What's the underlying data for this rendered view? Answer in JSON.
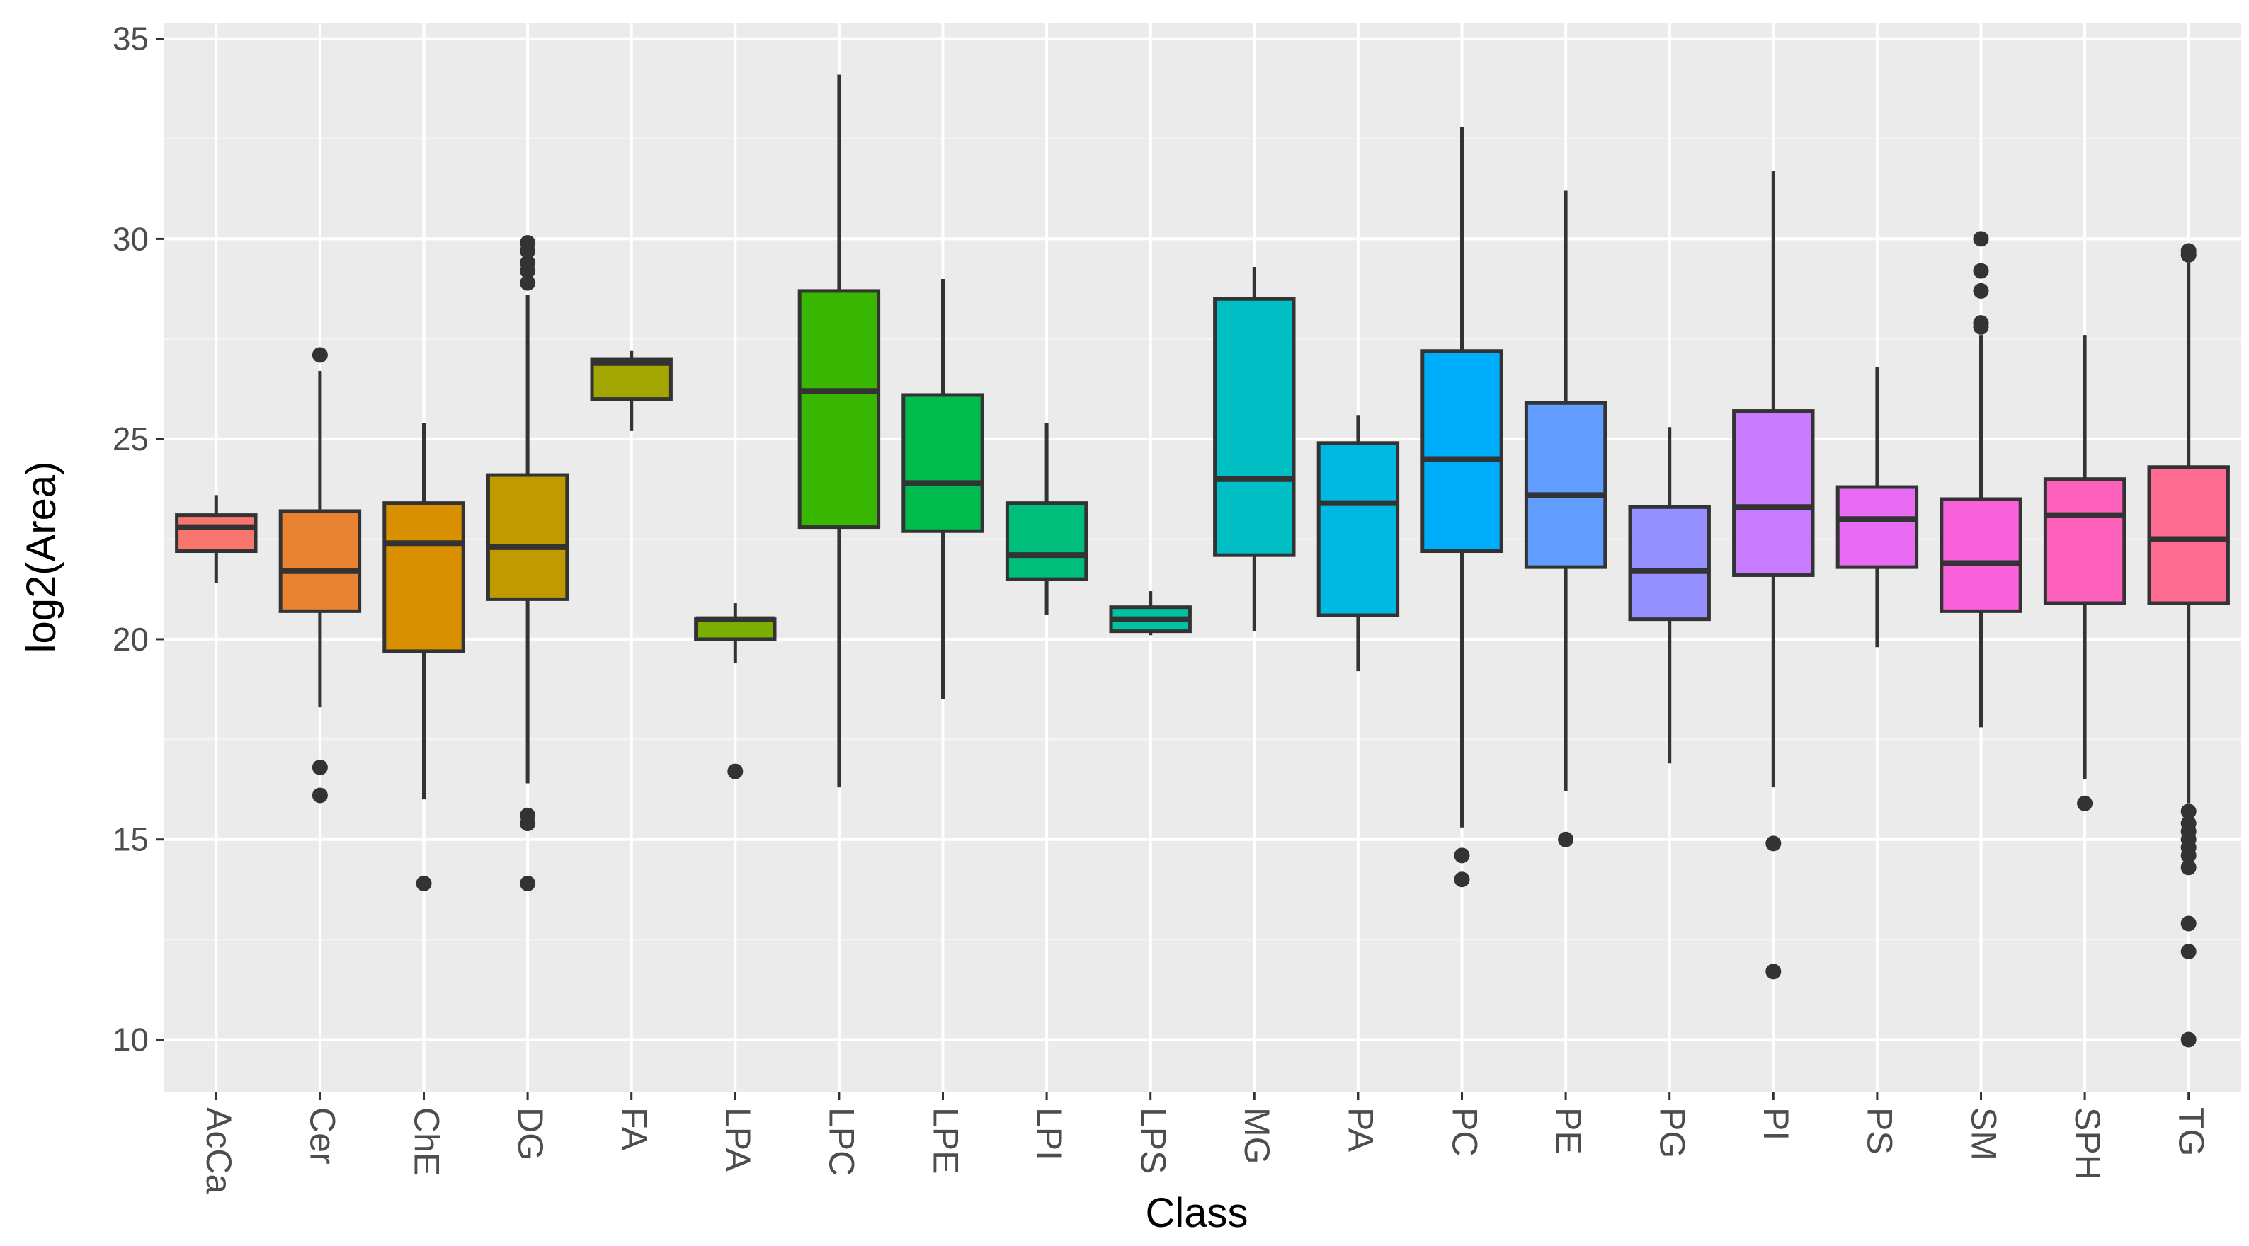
{
  "chart_data": {
    "type": "box",
    "title": "",
    "xlabel": "Class",
    "ylabel": "log2(Area)",
    "ylim": [
      8.7,
      35.4
    ],
    "yticks": [
      10,
      15,
      20,
      25,
      30,
      35
    ],
    "ytick_labels": [
      "10",
      "15",
      "20",
      "25",
      "30",
      "35"
    ],
    "categories": [
      "AcCa",
      "Cer",
      "ChE",
      "DG",
      "FA",
      "LPA",
      "LPC",
      "LPE",
      "LPI",
      "LPS",
      "MG",
      "PA",
      "PC",
      "PE",
      "PG",
      "PI",
      "PS",
      "SM",
      "SPH",
      "TG"
    ],
    "series": [
      {
        "name": "AcCa",
        "color": "#F8766D",
        "whisker_low": 21.4,
        "q1": 22.2,
        "median": 22.8,
        "q3": 23.1,
        "whisker_high": 23.6,
        "outliers": []
      },
      {
        "name": "Cer",
        "color": "#EA8331",
        "whisker_low": 18.3,
        "q1": 20.7,
        "median": 21.7,
        "q3": 23.2,
        "whisker_high": 26.7,
        "outliers": [
          27.1,
          16.8,
          16.1
        ]
      },
      {
        "name": "ChE",
        "color": "#D89000",
        "whisker_low": 16.0,
        "q1": 19.7,
        "median": 22.4,
        "q3": 23.4,
        "whisker_high": 25.4,
        "outliers": [
          13.9
        ]
      },
      {
        "name": "DG",
        "color": "#C09B00",
        "whisker_low": 16.4,
        "q1": 21.0,
        "median": 22.3,
        "q3": 24.1,
        "whisker_high": 28.6,
        "outliers": [
          29.9,
          29.7,
          29.4,
          29.2,
          28.9,
          15.6,
          15.4,
          13.9
        ]
      },
      {
        "name": "FA",
        "color": "#A3A500",
        "whisker_low": 25.2,
        "q1": 26.0,
        "median": 26.9,
        "q3": 27.0,
        "whisker_high": 27.2,
        "outliers": []
      },
      {
        "name": "LPA",
        "color": "#7CAE00",
        "whisker_low": 19.4,
        "q1": 20.0,
        "median": 20.5,
        "q3": 20.5,
        "whisker_high": 20.9,
        "outliers": [
          16.7
        ]
      },
      {
        "name": "LPC",
        "color": "#39B600",
        "whisker_low": 16.3,
        "q1": 22.8,
        "median": 26.2,
        "q3": 28.7,
        "whisker_high": 34.1,
        "outliers": []
      },
      {
        "name": "LPE",
        "color": "#00BB4E",
        "whisker_low": 18.5,
        "q1": 22.7,
        "median": 23.9,
        "q3": 26.1,
        "whisker_high": 29.0,
        "outliers": []
      },
      {
        "name": "LPI",
        "color": "#00BF7D",
        "whisker_low": 20.6,
        "q1": 21.5,
        "median": 22.1,
        "q3": 23.4,
        "whisker_high": 25.4,
        "outliers": []
      },
      {
        "name": "LPS",
        "color": "#00C1A3",
        "whisker_low": 20.1,
        "q1": 20.2,
        "median": 20.5,
        "q3": 20.8,
        "whisker_high": 21.2,
        "outliers": []
      },
      {
        "name": "MG",
        "color": "#00BFC4",
        "whisker_low": 20.2,
        "q1": 22.1,
        "median": 24.0,
        "q3": 28.5,
        "whisker_high": 29.3,
        "outliers": []
      },
      {
        "name": "PA",
        "color": "#00B9E3",
        "whisker_low": 19.2,
        "q1": 20.6,
        "median": 23.4,
        "q3": 24.9,
        "whisker_high": 25.6,
        "outliers": []
      },
      {
        "name": "PC",
        "color": "#00ADFA",
        "whisker_low": 15.3,
        "q1": 22.2,
        "median": 24.5,
        "q3": 27.2,
        "whisker_high": 32.8,
        "outliers": [
          14.6,
          14.0
        ]
      },
      {
        "name": "PE",
        "color": "#619CFF",
        "whisker_low": 16.2,
        "q1": 21.8,
        "median": 23.6,
        "q3": 25.9,
        "whisker_high": 31.2,
        "outliers": [
          15.0
        ]
      },
      {
        "name": "PG",
        "color": "#9590FF",
        "whisker_low": 16.9,
        "q1": 20.5,
        "median": 21.7,
        "q3": 23.3,
        "whisker_high": 25.3,
        "outliers": []
      },
      {
        "name": "PI",
        "color": "#C77CFF",
        "whisker_low": 16.3,
        "q1": 21.6,
        "median": 23.3,
        "q3": 25.7,
        "whisker_high": 31.7,
        "outliers": [
          14.9,
          11.7
        ]
      },
      {
        "name": "PS",
        "color": "#E76BF3",
        "whisker_low": 19.8,
        "q1": 21.8,
        "median": 23.0,
        "q3": 23.8,
        "whisker_high": 26.8,
        "outliers": []
      },
      {
        "name": "SM",
        "color": "#FA62DB",
        "whisker_low": 17.8,
        "q1": 20.7,
        "median": 21.9,
        "q3": 23.5,
        "whisker_high": 27.6,
        "outliers": [
          30.0,
          29.2,
          28.7,
          27.9,
          27.8
        ]
      },
      {
        "name": "SPH",
        "color": "#FF62BC",
        "whisker_low": 16.5,
        "q1": 20.9,
        "median": 23.1,
        "q3": 24.0,
        "whisker_high": 27.6,
        "outliers": [
          15.9
        ]
      },
      {
        "name": "TG",
        "color": "#FF6C91",
        "whisker_low": 15.9,
        "q1": 20.9,
        "median": 22.5,
        "q3": 24.3,
        "whisker_high": 29.4,
        "outliers": [
          29.7,
          29.6,
          15.7,
          15.4,
          15.2,
          15.0,
          14.8,
          14.6,
          14.3,
          12.9,
          12.2,
          10.0
        ]
      }
    ],
    "grid": true,
    "legend": "none",
    "background": "#EBEBEB"
  }
}
